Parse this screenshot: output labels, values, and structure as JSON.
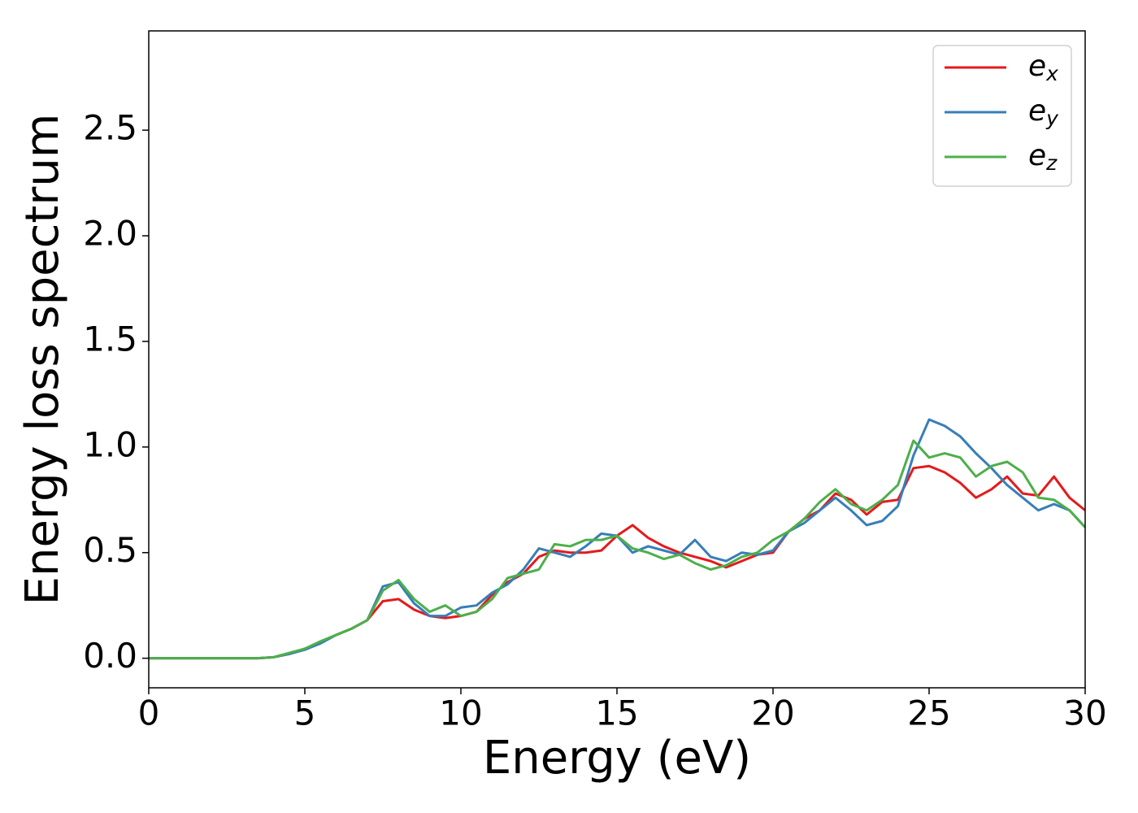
{
  "chart_data": {
    "type": "line",
    "xlabel": "Energy (eV)",
    "ylabel": "Energy loss spectrum",
    "x": [
      0,
      0.5,
      1,
      1.5,
      2,
      2.5,
      3,
      3.5,
      4,
      4.5,
      5,
      5.5,
      6,
      6.5,
      7,
      7.5,
      8,
      8.5,
      9,
      9.5,
      10,
      10.5,
      11,
      11.5,
      12,
      12.5,
      13,
      13.5,
      14,
      14.5,
      15,
      15.5,
      16,
      16.5,
      17,
      17.5,
      18,
      18.5,
      19,
      19.5,
      20,
      20.5,
      21,
      21.5,
      22,
      22.5,
      23,
      23.5,
      24,
      24.5,
      25,
      25.5,
      26,
      26.5,
      27,
      27.5,
      28,
      28.5,
      29,
      29.5,
      30
    ],
    "series": [
      {
        "name": "ex",
        "color": "#e41a1c",
        "values": [
          0,
          0,
          0,
          0,
          0,
          0,
          0,
          0,
          0.005,
          0.02,
          0.045,
          0.075,
          0.11,
          0.14,
          0.18,
          0.27,
          0.28,
          0.23,
          0.2,
          0.19,
          0.2,
          0.22,
          0.3,
          0.36,
          0.4,
          0.48,
          0.51,
          0.5,
          0.5,
          0.51,
          0.58,
          0.63,
          0.57,
          0.53,
          0.5,
          0.48,
          0.46,
          0.43,
          0.46,
          0.49,
          0.5,
          0.6,
          0.66,
          0.7,
          0.78,
          0.75,
          0.68,
          0.74,
          0.75,
          0.9,
          0.91,
          0.88,
          0.83,
          0.76,
          0.8,
          0.86,
          0.78,
          0.77,
          0.86,
          0.76,
          0.7
        ]
      },
      {
        "name": "ey",
        "color": "#377eb8",
        "values": [
          0,
          0,
          0,
          0,
          0,
          0,
          0,
          0,
          0.005,
          0.02,
          0.04,
          0.07,
          0.11,
          0.14,
          0.18,
          0.34,
          0.36,
          0.26,
          0.2,
          0.2,
          0.24,
          0.25,
          0.31,
          0.35,
          0.42,
          0.52,
          0.5,
          0.48,
          0.53,
          0.59,
          0.58,
          0.5,
          0.53,
          0.51,
          0.49,
          0.56,
          0.48,
          0.46,
          0.5,
          0.49,
          0.51,
          0.6,
          0.64,
          0.7,
          0.76,
          0.7,
          0.63,
          0.65,
          0.72,
          0.96,
          1.13,
          1.1,
          1.05,
          0.97,
          0.9,
          0.82,
          0.76,
          0.7,
          0.73,
          0.7,
          0.62
        ]
      },
      {
        "name": "ez",
        "color": "#4daf4a",
        "values": [
          0,
          0,
          0,
          0,
          0,
          0,
          0,
          0,
          0.005,
          0.025,
          0.045,
          0.08,
          0.11,
          0.14,
          0.18,
          0.32,
          0.37,
          0.28,
          0.22,
          0.25,
          0.2,
          0.22,
          0.28,
          0.38,
          0.4,
          0.42,
          0.54,
          0.53,
          0.56,
          0.56,
          0.58,
          0.52,
          0.5,
          0.47,
          0.49,
          0.45,
          0.42,
          0.44,
          0.48,
          0.5,
          0.56,
          0.6,
          0.66,
          0.74,
          0.8,
          0.73,
          0.7,
          0.75,
          0.82,
          1.03,
          0.95,
          0.97,
          0.95,
          0.86,
          0.91,
          0.93,
          0.88,
          0.76,
          0.75,
          0.7,
          0.62
        ]
      }
    ],
    "xlim": [
      0,
      30
    ],
    "xticks": [
      0,
      5,
      10,
      15,
      20,
      25,
      30
    ],
    "ylim": [
      -0.14,
      2.97
    ],
    "yticks": [
      {
        "value": 0,
        "label": "0.0"
      },
      0.5,
      {
        "value": 1,
        "label": "1.0"
      },
      1.5,
      {
        "value": 2,
        "label": "2.0"
      },
      2.5
    ],
    "legend": "upper right",
    "grid": false
  }
}
